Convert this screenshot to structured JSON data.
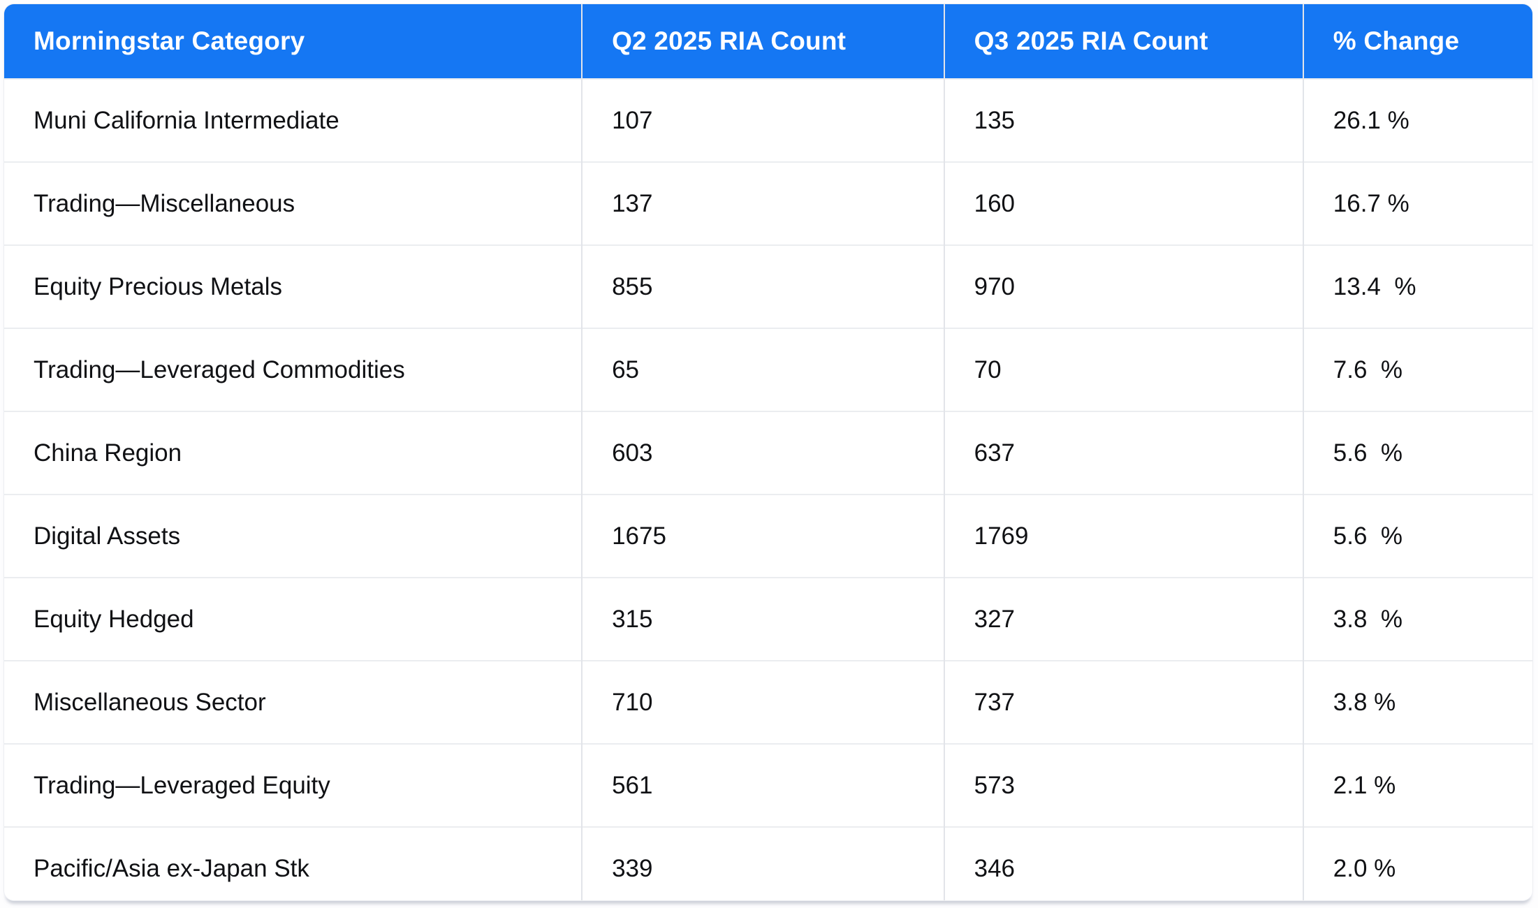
{
  "colors": {
    "header_bg": "#1577f3",
    "header_text": "#ffffff",
    "body_text": "#101114",
    "grid_line": "#e2e4e9",
    "row_line": "#ebedf0",
    "card_bg": "#ffffff"
  },
  "chart_data": {
    "type": "table",
    "title": "",
    "columns": [
      "Morningstar Category",
      "Q2 2025 RIA Count",
      "Q3 2025 RIA Count",
      "% Change"
    ],
    "rows": [
      {
        "category": "Muni California Intermediate",
        "q2_2025_ria_count": "107",
        "q3_2025_ria_count": "135",
        "pct_change_display": "26.1 %",
        "pct_change": 26.1
      },
      {
        "category": "Trading—Miscellaneous",
        "q2_2025_ria_count": "137",
        "q3_2025_ria_count": "160",
        "pct_change_display": "16.7 %",
        "pct_change": 16.7
      },
      {
        "category": "Equity Precious Metals",
        "q2_2025_ria_count": "855",
        "q3_2025_ria_count": "970",
        "pct_change_display": "13.4  %",
        "pct_change": 13.4
      },
      {
        "category": "Trading—Leveraged Commodities",
        "q2_2025_ria_count": "65",
        "q3_2025_ria_count": "70",
        "pct_change_display": "7.6  %",
        "pct_change": 7.6
      },
      {
        "category": "China Region",
        "q2_2025_ria_count": "603",
        "q3_2025_ria_count": "637",
        "pct_change_display": "5.6  %",
        "pct_change": 5.6
      },
      {
        "category": "Digital Assets",
        "q2_2025_ria_count": "1675",
        "q3_2025_ria_count": "1769",
        "pct_change_display": "5.6  %",
        "pct_change": 5.6
      },
      {
        "category": "Equity Hedged",
        "q2_2025_ria_count": "315",
        "q3_2025_ria_count": "327",
        "pct_change_display": "3.8  %",
        "pct_change": 3.8
      },
      {
        "category": "Miscellaneous Sector",
        "q2_2025_ria_count": "710",
        "q3_2025_ria_count": "737",
        "pct_change_display": "3.8 %",
        "pct_change": 3.8
      },
      {
        "category": "Trading—Leveraged Equity",
        "q2_2025_ria_count": "561",
        "q3_2025_ria_count": "573",
        "pct_change_display": "2.1 %",
        "pct_change": 2.1
      },
      {
        "category": "Pacific/Asia ex-Japan Stk",
        "q2_2025_ria_count": "339",
        "q3_2025_ria_count": "346",
        "pct_change_display": "2.0 %",
        "pct_change": 2.0
      }
    ]
  }
}
